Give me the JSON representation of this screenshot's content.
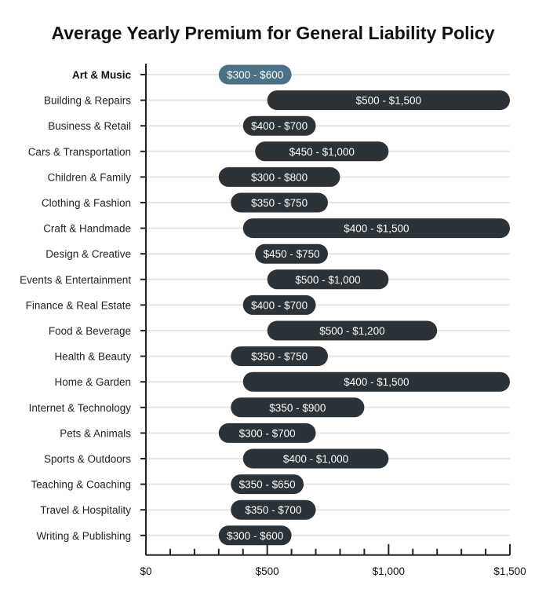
{
  "chart_data": {
    "type": "bar",
    "orientation": "horizontal",
    "style": "floating range",
    "title": "Average Yearly Premium for General Liability Policy",
    "xlabel": "",
    "ylabel": "",
    "xlim": [
      0,
      1500
    ],
    "x_ticks": [
      0,
      500,
      1000,
      1500
    ],
    "x_tick_labels": [
      "$0",
      "$500",
      "$1,000",
      "$1,500"
    ],
    "grid": "horizontal row lines",
    "colors": {
      "default_bar": "#2b3338",
      "highlight_bar": "#4a7186",
      "axis": "#222222",
      "grid": "#e6e6e6"
    },
    "highlighted_category": "Art & Music",
    "categories": [
      "Art & Music",
      "Building & Repairs",
      "Business & Retail",
      "Cars & Transportation",
      "Children & Family",
      "Clothing & Fashion",
      "Craft & Handmade",
      "Design & Creative",
      "Events & Entertainment",
      "Finance & Real Estate",
      "Food & Beverage",
      "Health & Beauty",
      "Home & Garden",
      "Internet & Technology",
      "Pets & Animals",
      "Sports & Outdoors",
      "Teaching & Coaching",
      "Travel & Hospitality",
      "Writing & Publishing"
    ],
    "ranges": [
      [
        300,
        600
      ],
      [
        500,
        1500
      ],
      [
        400,
        700
      ],
      [
        450,
        1000
      ],
      [
        300,
        800
      ],
      [
        350,
        750
      ],
      [
        400,
        1500
      ],
      [
        450,
        750
      ],
      [
        500,
        1000
      ],
      [
        400,
        700
      ],
      [
        500,
        1200
      ],
      [
        350,
        750
      ],
      [
        400,
        1500
      ],
      [
        350,
        900
      ],
      [
        300,
        700
      ],
      [
        400,
        1000
      ],
      [
        350,
        650
      ],
      [
        350,
        700
      ],
      [
        300,
        600
      ]
    ],
    "data_labels": [
      "$300 - $600",
      "$500 - $1,500",
      "$400 - $700",
      "$450 - $1,000",
      "$300 - $800",
      "$350 - $750",
      "$400 - $1,500",
      "$450 - $750",
      "$500 - $1,000",
      "$400 - $700",
      "$500 - $1,200",
      "$350 - $750",
      "$400 - $1,500",
      "$350 - $900",
      "$300 - $700",
      "$400 - $1,000",
      "$350 - $650",
      "$350 - $700",
      "$300 - $600"
    ]
  }
}
